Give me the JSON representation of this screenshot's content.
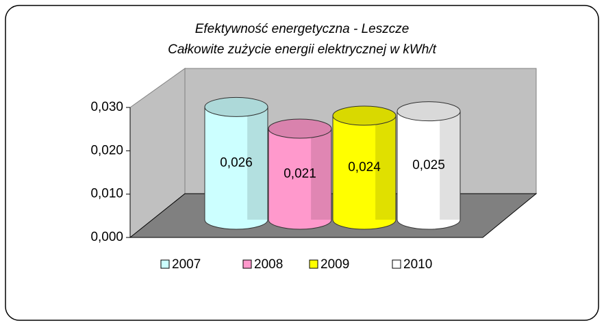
{
  "chart_data": {
    "type": "bar",
    "title": "Efektywność energetyczna - Leszcze",
    "subtitle": "Całkowite zużycie energii elektrycznej w kWh/t",
    "categories": [
      null
    ],
    "series": [
      {
        "name": "2007",
        "color": "#ccffff",
        "values": [
          0.026
        ],
        "value_labels": [
          "0,026"
        ]
      },
      {
        "name": "2008",
        "color": "#ff99cc",
        "values": [
          0.021
        ],
        "value_labels": [
          "0,021"
        ]
      },
      {
        "name": "2009",
        "color": "#ffff00",
        "values": [
          0.024
        ],
        "value_labels": [
          "0,024"
        ]
      },
      {
        "name": "2010",
        "color": "#ffffff",
        "values": [
          0.025
        ],
        "value_labels": [
          "0,025"
        ]
      }
    ],
    "ylim": [
      0,
      0.03
    ],
    "yticks": [
      {
        "value": 0,
        "label": "0,000"
      },
      {
        "value": 0.01,
        "label": "0,010"
      },
      {
        "value": 0.02,
        "label": "0,020"
      },
      {
        "value": 0.03,
        "label": "0,030"
      }
    ],
    "legend": "bottom"
  }
}
